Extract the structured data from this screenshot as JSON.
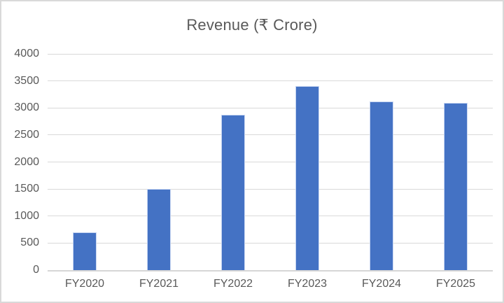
{
  "window": {
    "background_color": "#ffffff",
    "border_color": "#d9d9d9"
  },
  "chart_data": {
    "type": "bar",
    "title": "Revenue (₹ Crore)",
    "categories": [
      "FY2020",
      "FY2021",
      "FY2022",
      "FY2023",
      "FY2024",
      "FY2025"
    ],
    "values": [
      700,
      1500,
      2870,
      3400,
      3120,
      3090
    ],
    "xlabel": "",
    "ylabel": "",
    "ylim": [
      0,
      4000
    ],
    "yticks": [
      0,
      500,
      1000,
      1500,
      2000,
      2500,
      3000,
      3500,
      4000
    ],
    "grid": true,
    "legend": false,
    "bar_color": "#4472C4",
    "gridline_color": "#d9d9d9",
    "axis_line_color": "#d6d6d6",
    "text_color": "#595959"
  }
}
